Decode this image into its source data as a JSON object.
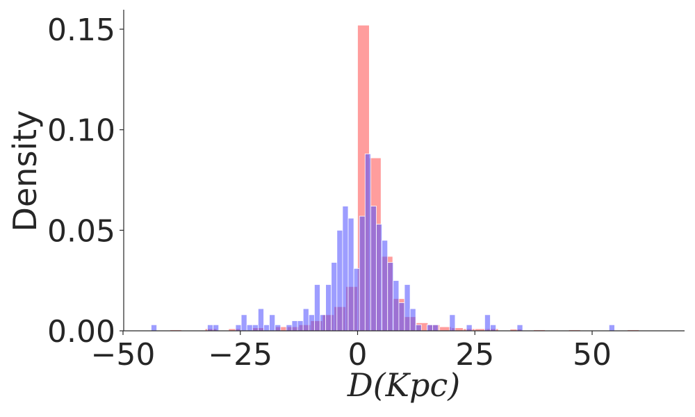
{
  "chart_data": {
    "type": "bar",
    "title": "",
    "xlabel": "D(Kpc)",
    "ylabel": "Density",
    "xlim": [
      -50,
      70
    ],
    "ylim": [
      0,
      0.16
    ],
    "x_ticks": [
      -50,
      -25,
      0,
      25,
      50
    ],
    "x_tick_labels": [
      "−50",
      "−25",
      "0",
      "25",
      "50"
    ],
    "y_ticks": [
      0,
      0.05,
      0.1,
      0.15
    ],
    "y_tick_labels": [
      "0.00",
      "0.05",
      "0.10",
      "0.15"
    ],
    "grid": false,
    "legend": "none",
    "series": [
      {
        "color": "#ff4d4d",
        "opacity": 0.55,
        "bins": [
          {
            "x0": -40,
            "x1": -37.5,
            "y": 0.0005
          },
          {
            "x0": -32.5,
            "x1": -30,
            "y": 0.001
          },
          {
            "x0": -27.5,
            "x1": -25,
            "y": 0.001
          },
          {
            "x0": -22.5,
            "x1": -20,
            "y": 0.0015
          },
          {
            "x0": -17.5,
            "x1": -15,
            "y": 0.002
          },
          {
            "x0": -15,
            "x1": -12.5,
            "y": 0.002
          },
          {
            "x0": -12.5,
            "x1": -10,
            "y": 0.003
          },
          {
            "x0": -10,
            "x1": -7.5,
            "y": 0.005
          },
          {
            "x0": -7.5,
            "x1": -5,
            "y": 0.008
          },
          {
            "x0": -5,
            "x1": -2.5,
            "y": 0.012
          },
          {
            "x0": -2.5,
            "x1": 0,
            "y": 0.022
          },
          {
            "x0": 0,
            "x1": 2.5,
            "y": 0.152
          },
          {
            "x0": 2.5,
            "x1": 5,
            "y": 0.086
          },
          {
            "x0": 5,
            "x1": 7.5,
            "y": 0.037
          },
          {
            "x0": 7.5,
            "x1": 10,
            "y": 0.016
          },
          {
            "x0": 10,
            "x1": 12.5,
            "y": 0.007
          },
          {
            "x0": 12.5,
            "x1": 15,
            "y": 0.004
          },
          {
            "x0": 15,
            "x1": 17.5,
            "y": 0.003
          },
          {
            "x0": 17.5,
            "x1": 20,
            "y": 0.002
          },
          {
            "x0": 20,
            "x1": 22.5,
            "y": 0.0015
          },
          {
            "x0": 22.5,
            "x1": 25,
            "y": 0.001
          },
          {
            "x0": 25,
            "x1": 27.5,
            "y": 0.001
          },
          {
            "x0": 27.5,
            "x1": 30,
            "y": 0.001
          },
          {
            "x0": 32.5,
            "x1": 35,
            "y": 0.0008
          },
          {
            "x0": 37.5,
            "x1": 40,
            "y": 0.0005
          },
          {
            "x0": 45,
            "x1": 47.5,
            "y": 0.0005
          },
          {
            "x0": 57.5,
            "x1": 60,
            "y": 0.0005
          }
        ]
      },
      {
        "color": "#4d4dff",
        "opacity": 0.55,
        "bins": [
          {
            "x0": -44,
            "x1": -42.8,
            "y": 0.003
          },
          {
            "x0": -32,
            "x1": -30.8,
            "y": 0.003
          },
          {
            "x0": -30.8,
            "x1": -29.6,
            "y": 0.003
          },
          {
            "x0": -26,
            "x1": -24.8,
            "y": 0.003
          },
          {
            "x0": -24.8,
            "x1": -23.6,
            "y": 0.008
          },
          {
            "x0": -23.6,
            "x1": -22.4,
            "y": 0.003
          },
          {
            "x0": -22.4,
            "x1": -21.2,
            "y": 0.003
          },
          {
            "x0": -21.2,
            "x1": -20,
            "y": 0.011
          },
          {
            "x0": -20,
            "x1": -18.8,
            "y": 0.003
          },
          {
            "x0": -18.8,
            "x1": -17.6,
            "y": 0.008
          },
          {
            "x0": -17.6,
            "x1": -16.4,
            "y": 0.003
          },
          {
            "x0": -15.2,
            "x1": -14,
            "y": 0.003
          },
          {
            "x0": -14,
            "x1": -12.8,
            "y": 0.005
          },
          {
            "x0": -12.8,
            "x1": -11.6,
            "y": 0.005
          },
          {
            "x0": -11.6,
            "x1": -10.4,
            "y": 0.011
          },
          {
            "x0": -10.4,
            "x1": -9.2,
            "y": 0.008
          },
          {
            "x0": -9.2,
            "x1": -8,
            "y": 0.023
          },
          {
            "x0": -8,
            "x1": -6.8,
            "y": 0.008
          },
          {
            "x0": -6.8,
            "x1": -5.6,
            "y": 0.023
          },
          {
            "x0": -5.6,
            "x1": -4.4,
            "y": 0.034
          },
          {
            "x0": -4.4,
            "x1": -3.2,
            "y": 0.05
          },
          {
            "x0": -3.2,
            "x1": -2,
            "y": 0.062
          },
          {
            "x0": -2,
            "x1": -0.8,
            "y": 0.056
          },
          {
            "x0": -0.8,
            "x1": 0.4,
            "y": 0.031
          },
          {
            "x0": 0.4,
            "x1": 1.6,
            "y": 0.057
          },
          {
            "x0": 1.6,
            "x1": 2.8,
            "y": 0.088
          },
          {
            "x0": 2.8,
            "x1": 4,
            "y": 0.062
          },
          {
            "x0": 4,
            "x1": 5.2,
            "y": 0.053
          },
          {
            "x0": 5.2,
            "x1": 6.4,
            "y": 0.045
          },
          {
            "x0": 6.4,
            "x1": 7.6,
            "y": 0.034
          },
          {
            "x0": 7.6,
            "x1": 8.8,
            "y": 0.025
          },
          {
            "x0": 8.8,
            "x1": 10,
            "y": 0.014
          },
          {
            "x0": 10,
            "x1": 11.2,
            "y": 0.023
          },
          {
            "x0": 11.2,
            "x1": 12.4,
            "y": 0.011
          },
          {
            "x0": 12.4,
            "x1": 13.6,
            "y": 0.003
          },
          {
            "x0": 14.8,
            "x1": 16,
            "y": 0.003
          },
          {
            "x0": 16,
            "x1": 17.2,
            "y": 0.003
          },
          {
            "x0": 19.6,
            "x1": 20.8,
            "y": 0.008
          },
          {
            "x0": 23.2,
            "x1": 24.4,
            "y": 0.003
          },
          {
            "x0": 27.1,
            "x1": 28.3,
            "y": 0.008
          },
          {
            "x0": 28.3,
            "x1": 29.5,
            "y": 0.003
          },
          {
            "x0": 34,
            "x1": 35.2,
            "y": 0.003
          },
          {
            "x0": 53.6,
            "x1": 54.8,
            "y": 0.003
          }
        ]
      }
    ]
  }
}
